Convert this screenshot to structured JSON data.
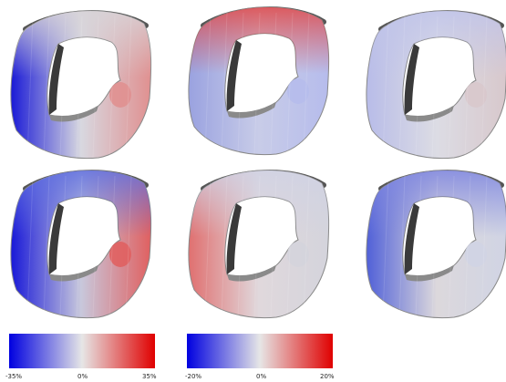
{
  "panels": [
    {
      "id": "r1c1",
      "shading": "blue-left",
      "shade_left": "#1a1ad6",
      "shade_mid": "#d8d8e0",
      "shade_right": "#e09090",
      "shade_top": "#d8d4d8"
    },
    {
      "id": "r1c2",
      "shading": "red-top",
      "shade_left": "#9aa2e0",
      "shade_mid": "#c8cce8",
      "shade_right": "#b6bcec",
      "shade_top": "#e04848"
    },
    {
      "id": "r1c3",
      "shading": "pale-blue",
      "shade_left": "#b8bce8",
      "shade_mid": "#dcdce4",
      "shade_right": "#d8c8cc",
      "shade_top": "#c0c4ea"
    },
    {
      "id": "r2c1",
      "shading": "blue-red",
      "shade_left": "#1818d8",
      "shade_mid": "#c8c8dc",
      "shade_right": "#e06060",
      "shade_top": "#6070e0"
    },
    {
      "id": "r2c2",
      "shading": "red-bottom",
      "shade_left": "#e07070",
      "shade_mid": "#e0d8dc",
      "shade_right": "#d4d4dc",
      "shade_top": "#d0d2e4"
    },
    {
      "id": "r2c3",
      "shading": "mixed",
      "shade_left": "#5060d8",
      "shade_mid": "#dcd8dc",
      "shade_right": "#d0d4e4",
      "shade_top": "#7e86e0"
    }
  ],
  "colorbars": [
    {
      "min_label": "-35%",
      "mid_label": "0%",
      "max_label": "35%",
      "low_color": "#0000e0",
      "mid_color": "#e6e6e6",
      "high_color": "#e00000"
    },
    {
      "min_label": "-20%",
      "mid_label": "0%",
      "max_label": "20%",
      "low_color": "#0000e0",
      "mid_color": "#e6e6e6",
      "high_color": "#e00000"
    }
  ]
}
